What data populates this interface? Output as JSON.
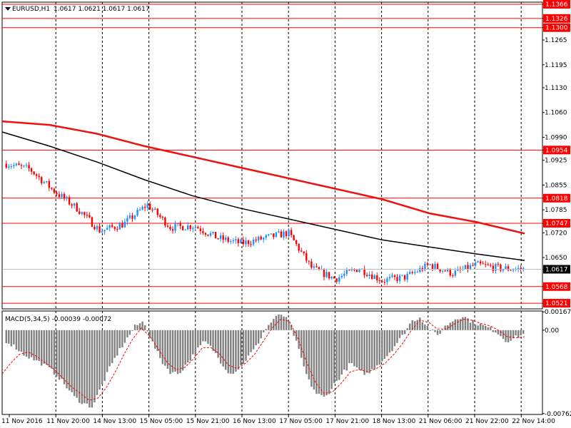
{
  "chart_data": [
    {
      "type": "candlestick",
      "title": "EURUSD,H1",
      "ohlc_label": "1.0617 1.0621 1.0617 1.0617",
      "price_ticks": [
        "1.1366",
        "1.1326",
        "1.1300",
        "1.1265",
        "1.1195",
        "1.1130",
        "1.1060",
        "1.0990",
        "1.0954",
        "1.0925",
        "1.0855",
        "1.0818",
        "1.0785",
        "1.0747",
        "1.0720",
        "1.0650",
        "1.0617",
        "1.0568",
        "1.0521"
      ],
      "x_ticks": [
        "11 Nov 2016",
        "11 Nov 20:00",
        "14 Nov 13:00",
        "15 Nov 05:00",
        "15 Nov 21:00",
        "16 Nov 13:00",
        "17 Nov 05:00",
        "17 Nov 21:00",
        "18 Nov 13:00",
        "21 Nov 06:00",
        "21 Nov 22:00",
        "22 Nov 14:00"
      ],
      "ylim": [
        1.0505,
        1.1372
      ],
      "current_price": 1.0617,
      "levels": [
        {
          "value": 1.1366,
          "label": "1.1366",
          "color": "#ff0000"
        },
        {
          "value": 1.1326,
          "label": "1.1326",
          "color": "#ff0000"
        },
        {
          "value": 1.13,
          "label": "1.1300",
          "color": "#ff0000"
        },
        {
          "value": 1.0954,
          "label": "1.0954",
          "color": "#ff0000"
        },
        {
          "value": 1.0818,
          "label": "1.0818",
          "color": "#ff0000"
        },
        {
          "value": 1.0747,
          "label": "1.0747",
          "color": "#ff0000"
        },
        {
          "value": 1.0568,
          "label": "1.0568",
          "color": "#ff0000"
        },
        {
          "value": 1.0521,
          "label": "1.0521",
          "color": "#ff0000"
        }
      ],
      "close_path": [
        {
          "date": "11 Nov 2016",
          "price": 1.0915
        },
        {
          "date": "11 Nov 14:00",
          "price": 1.09
        },
        {
          "date": "11 Nov 20:00",
          "price": 1.084
        },
        {
          "date": "14 Nov 05:00",
          "price": 1.079
        },
        {
          "date": "14 Nov 13:00",
          "price": 1.0725
        },
        {
          "date": "14 Nov 21:00",
          "price": 1.0745
        },
        {
          "date": "15 Nov 05:00",
          "price": 1.08
        },
        {
          "date": "15 Nov 13:00",
          "price": 1.0735
        },
        {
          "date": "15 Nov 21:00",
          "price": 1.074
        },
        {
          "date": "16 Nov 05:00",
          "price": 1.0705
        },
        {
          "date": "16 Nov 13:00",
          "price": 1.069
        },
        {
          "date": "16 Nov 21:00",
          "price": 1.0705
        },
        {
          "date": "17 Nov 05:00",
          "price": 1.072
        },
        {
          "date": "17 Nov 13:00",
          "price": 1.062
        },
        {
          "date": "17 Nov 21:00",
          "price": 1.059
        },
        {
          "date": "18 Nov 05:00",
          "price": 1.062
        },
        {
          "date": "18 Nov 13:00",
          "price": 1.0585
        },
        {
          "date": "18 Nov 21:00",
          "price": 1.0595
        },
        {
          "date": "21 Nov 06:00",
          "price": 1.063
        },
        {
          "date": "21 Nov 14:00",
          "price": 1.0605
        },
        {
          "date": "21 Nov 22:00",
          "price": 1.063
        },
        {
          "date": "22 Nov 06:00",
          "price": 1.062
        },
        {
          "date": "22 Nov 14:00",
          "price": 1.0617
        }
      ],
      "moving_averages": [
        {
          "color": "#ee1111",
          "values": [
            1.1035,
            1.1025,
            1.1,
            1.0965,
            1.0935,
            1.0905,
            1.0875,
            1.0845,
            1.0815,
            1.0775,
            1.075,
            1.0718
          ]
        },
        {
          "color": "#000000",
          "values": [
            1.1005,
            1.0965,
            1.092,
            1.087,
            1.0825,
            1.079,
            1.076,
            1.073,
            1.07,
            1.068,
            1.066,
            1.0642
          ]
        }
      ],
      "colors": {
        "bull": "#1e90ff",
        "bear": "#ff0000",
        "grid": "#000000",
        "current": "#c0c0c0"
      }
    },
    {
      "type": "bar",
      "title": "MACD(5,34,5) -0.00039 -0.00072",
      "y_ticks": [
        "0.00167",
        "0.00",
        "-0.00762"
      ],
      "ylim": [
        -0.0077,
        0.00175
      ],
      "histogram": [
        -0.001,
        -0.0015,
        -0.0022,
        -0.0026,
        -0.003,
        -0.0035,
        -0.0042,
        -0.0052,
        -0.0062,
        -0.0067,
        -0.007,
        -0.0052,
        -0.0035,
        -0.002,
        -0.0008,
        0.0004,
        0.0008,
        -0.0012,
        -0.0028,
        -0.0038,
        -0.004,
        -0.003,
        -0.002,
        -0.001,
        -0.0018,
        -0.003,
        -0.004,
        -0.0035,
        -0.0025,
        -0.0015,
        0.0,
        0.001,
        0.0015,
        0.0005,
        -0.002,
        -0.0045,
        -0.0058,
        -0.0062,
        -0.005,
        -0.004,
        -0.003,
        -0.0038,
        -0.004,
        -0.0032,
        -0.0025,
        -0.0015,
        -0.0005,
        0.0008,
        0.0012,
        0.0002,
        -0.0005,
        0.0004,
        0.001,
        0.0013,
        0.0008,
        0.0005,
        0.0002,
        -0.0002,
        -0.001,
        -0.0007,
        -0.0004
      ],
      "signal": [
        -0.004,
        -0.003,
        -0.0022,
        -0.002,
        -0.0024,
        -0.003,
        -0.0036,
        -0.0044,
        -0.0052,
        -0.0058,
        -0.0064,
        -0.0062,
        -0.0052,
        -0.0038,
        -0.0022,
        -0.0008,
        0.0002,
        -0.0006,
        -0.0018,
        -0.003,
        -0.0036,
        -0.0034,
        -0.0026,
        -0.0016,
        -0.0016,
        -0.0022,
        -0.0032,
        -0.0035,
        -0.003,
        -0.0022,
        -0.001,
        0.0002,
        0.001,
        0.0008,
        -0.0008,
        -0.003,
        -0.0048,
        -0.0058,
        -0.0056,
        -0.0048,
        -0.0038,
        -0.0036,
        -0.0038,
        -0.0035,
        -0.003,
        -0.0022,
        -0.0012,
        0.0,
        0.0009,
        0.0007,
        0.0001,
        0.0001,
        0.0006,
        0.001,
        0.0009,
        0.0006,
        0.0004,
        0.0,
        -0.0006,
        -0.0007,
        -0.0006
      ],
      "colors": {
        "bar": "#808080",
        "signal": "#ff0000"
      }
    }
  ]
}
